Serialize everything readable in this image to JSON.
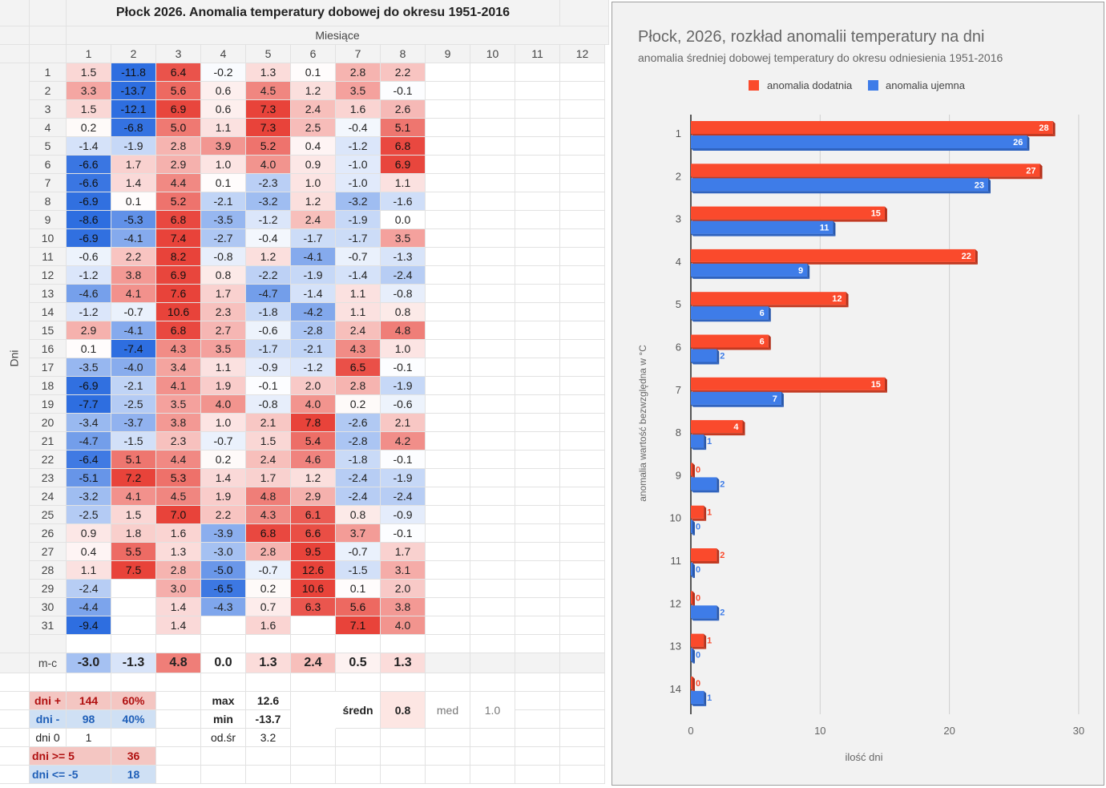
{
  "sheet": {
    "title": "Płock 2026. Anomalia temperatury dobowej  do okresu 1951-2016",
    "months_label": "Miesiące",
    "days_label": "Dni",
    "month_headers": [
      "1",
      "2",
      "3",
      "4",
      "5",
      "6",
      "7",
      "8",
      "9",
      "10",
      "11",
      "12"
    ],
    "day_headers": [
      "1",
      "2",
      "3",
      "4",
      "5",
      "6",
      "7",
      "8",
      "9",
      "10",
      "11",
      "12",
      "13",
      "14",
      "15",
      "16",
      "17",
      "18",
      "19",
      "20",
      "21",
      "22",
      "23",
      "24",
      "25",
      "26",
      "27",
      "28",
      "29",
      "30",
      "31"
    ],
    "month_columns": [
      [
        "1.5",
        "3.3",
        "1.5",
        "0.2",
        "-1.4",
        "-6.6",
        "-6.6",
        "-6.9",
        "-8.6",
        "-6.9",
        "-0.6",
        "-1.2",
        "-4.6",
        "-1.2",
        "2.9",
        "0.1",
        "-3.5",
        "-6.9",
        "-7.7",
        "-3.4",
        "-4.7",
        "-6.4",
        "-5.1",
        "-3.2",
        "-2.5",
        "0.9",
        "0.4",
        "1.1",
        "-2.4",
        "-4.4",
        "-9.4"
      ],
      [
        "-11.8",
        "-13.7",
        "-12.1",
        "-6.8",
        "-1.9",
        "1.7",
        "1.4",
        "0.1",
        "-5.3",
        "-4.1",
        "2.2",
        "3.8",
        "4.1",
        "-0.7",
        "-4.1",
        "-7.4",
        "-4.0",
        "-2.1",
        "-2.5",
        "-3.7",
        "-1.5",
        "5.1",
        "7.2",
        "4.1",
        "1.5",
        "1.8",
        "5.5",
        "7.5",
        "",
        "",
        ""
      ],
      [
        "6.4",
        "5.6",
        "6.9",
        "5.0",
        "2.8",
        "2.9",
        "4.4",
        "5.2",
        "6.8",
        "7.4",
        "8.2",
        "6.9",
        "7.6",
        "10.6",
        "6.8",
        "4.3",
        "3.4",
        "4.1",
        "3.5",
        "3.8",
        "2.3",
        "4.4",
        "5.3",
        "4.5",
        "7.0",
        "1.6",
        "1.3",
        "2.8",
        "3.0",
        "1.4",
        "1.4"
      ],
      [
        "-0.2",
        "0.6",
        "0.6",
        "1.1",
        "3.9",
        "1.0",
        "0.1",
        "-2.1",
        "-3.5",
        "-2.7",
        "-0.8",
        "0.8",
        "1.7",
        "2.3",
        "2.7",
        "3.5",
        "1.1",
        "1.9",
        "4.0",
        "1.0",
        "-0.7",
        "0.2",
        "1.4",
        "1.9",
        "2.2",
        "-3.9",
        "-3.0",
        "-5.0",
        "-6.5",
        "-4.3",
        ""
      ],
      [
        "1.3",
        "4.5",
        "7.3",
        "7.3",
        "5.2",
        "4.0",
        "-2.3",
        "-3.2",
        "-1.2",
        "-0.4",
        "1.2",
        "-2.2",
        "-4.7",
        "-1.8",
        "-0.6",
        "-1.7",
        "-0.9",
        "-0.1",
        "-0.8",
        "2.1",
        "1.5",
        "2.4",
        "1.7",
        "4.8",
        "4.3",
        "6.8",
        "2.8",
        "-0.7",
        "0.2",
        "0.7",
        "1.6"
      ],
      [
        "0.1",
        "1.2",
        "2.4",
        "2.5",
        "0.4",
        "0.9",
        "1.0",
        "1.2",
        "2.4",
        "-1.7",
        "-4.1",
        "-1.9",
        "-1.4",
        "-4.2",
        "-2.8",
        "-2.1",
        "-1.2",
        "2.0",
        "4.0",
        "7.8",
        "5.4",
        "4.6",
        "1.2",
        "2.9",
        "6.1",
        "6.6",
        "9.5",
        "12.6",
        "10.6",
        "6.3",
        ""
      ],
      [
        "2.8",
        "3.5",
        "1.6",
        "-0.4",
        "-1.2",
        "-1.0",
        "-1.0",
        "-3.2",
        "-1.9",
        "-1.7",
        "-0.7",
        "-1.4",
        "1.1",
        "1.1",
        "2.4",
        "4.3",
        "6.5",
        "2.8",
        "0.2",
        "-2.6",
        "-2.8",
        "-1.8",
        "-2.4",
        "-2.4",
        "0.8",
        "3.7",
        "-0.7",
        "-1.5",
        "0.1",
        "5.6",
        "7.1"
      ],
      [
        "2.2",
        "-0.1",
        "2.6",
        "5.1",
        "6.8",
        "6.9",
        "1.1",
        "-1.6",
        "0.0",
        "3.5",
        "-1.3",
        "-2.4",
        "-0.8",
        "0.8",
        "4.8",
        "1.0",
        "-0.1",
        "-1.9",
        "-0.6",
        "2.1",
        "4.2",
        "-0.1",
        "-1.9",
        "-2.4",
        "-0.9",
        "-0.1",
        "1.7",
        "3.1",
        "2.0",
        "3.8",
        "4.0"
      ]
    ],
    "monthly_mean_label": "m-c",
    "monthly_means": [
      "-3.0",
      "-1.3",
      "4.8",
      "0.0",
      "1.3",
      "2.4",
      "0.5",
      "1.3"
    ],
    "stats": {
      "dni_plus_label": "dni +",
      "dni_plus_count": "144",
      "dni_plus_pct": "60%",
      "dni_minus_label": "dni -",
      "dni_minus_count": "98",
      "dni_minus_pct": "40%",
      "dni_zero_label": "dni 0",
      "dni_zero_count": "1",
      "dni_ge5_label": "dni >= 5",
      "dni_ge5_count": "36",
      "dni_le5_label": "dni <= -5",
      "dni_le5_count": "18",
      "max_label": "max",
      "max_value": "12.6",
      "min_label": "min",
      "min_value": "-13.7",
      "odsr_label": "od.śr",
      "odsr_value": "3.2",
      "sredn_label": "średn",
      "sredn_value": "0.8",
      "med_label": "med",
      "med_value": "1.0"
    },
    "colors": {
      "pos_strong": "#e8433a",
      "neg_strong": "#2e6ee0",
      "header_bg": "#f3f3f3"
    }
  },
  "chart_data": {
    "type": "bar",
    "orientation": "horizontal",
    "title": "Płock, 2026, rozkład anomalii temperatury na dni",
    "subtitle": "anomalia średniej dobowej temperatury do okresu odniesienia 1951-2016",
    "xlabel": "ilość dni",
    "ylabel": "anomalia wartość bezwzględna w °C",
    "categories": [
      "1",
      "2",
      "3",
      "4",
      "5",
      "6",
      "7",
      "8",
      "9",
      "10",
      "11",
      "12",
      "13",
      "14"
    ],
    "series": [
      {
        "name": "anomalia dodatnia",
        "color": "#fa4a2c",
        "values": [
          28,
          27,
          15,
          22,
          12,
          6,
          15,
          4,
          0,
          1,
          2,
          0,
          1,
          0
        ]
      },
      {
        "name": "anomalia ujemna",
        "color": "#3e7ce8",
        "values": [
          26,
          23,
          11,
          9,
          6,
          2,
          7,
          1,
          2,
          0,
          0,
          2,
          0,
          1
        ]
      }
    ],
    "xlim": [
      0,
      30
    ],
    "xticks": [
      "0",
      "10",
      "20",
      "30"
    ],
    "grid": true,
    "legend": "top"
  }
}
